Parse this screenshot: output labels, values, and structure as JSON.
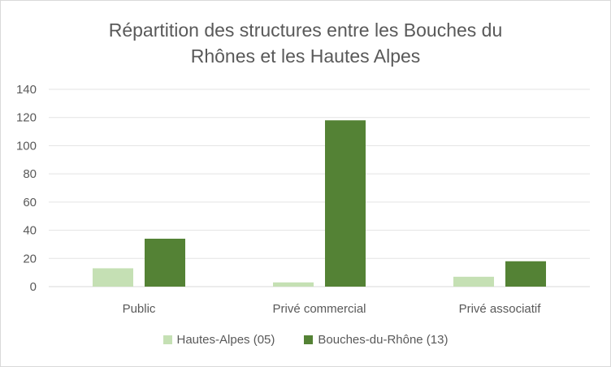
{
  "chart_data": {
    "type": "bar",
    "title_lines": [
      "Répartition des structures entre les Bouches du",
      "Rhônes et les Hautes Alpes"
    ],
    "categories": [
      "Public",
      "Privé commercial",
      "Privé associatif"
    ],
    "series": [
      {
        "name": "Hautes-Alpes (05)",
        "values": [
          13,
          3,
          7
        ],
        "color": "#c5e0b4"
      },
      {
        "name": "Bouches-du-Rhône (13)",
        "values": [
          34,
          118,
          18
        ],
        "color": "#548235"
      }
    ],
    "ylim": [
      0,
      140
    ],
    "yticks": [
      0,
      20,
      40,
      60,
      80,
      100,
      120,
      140
    ],
    "grid": true,
    "legend_position": "bottom"
  }
}
